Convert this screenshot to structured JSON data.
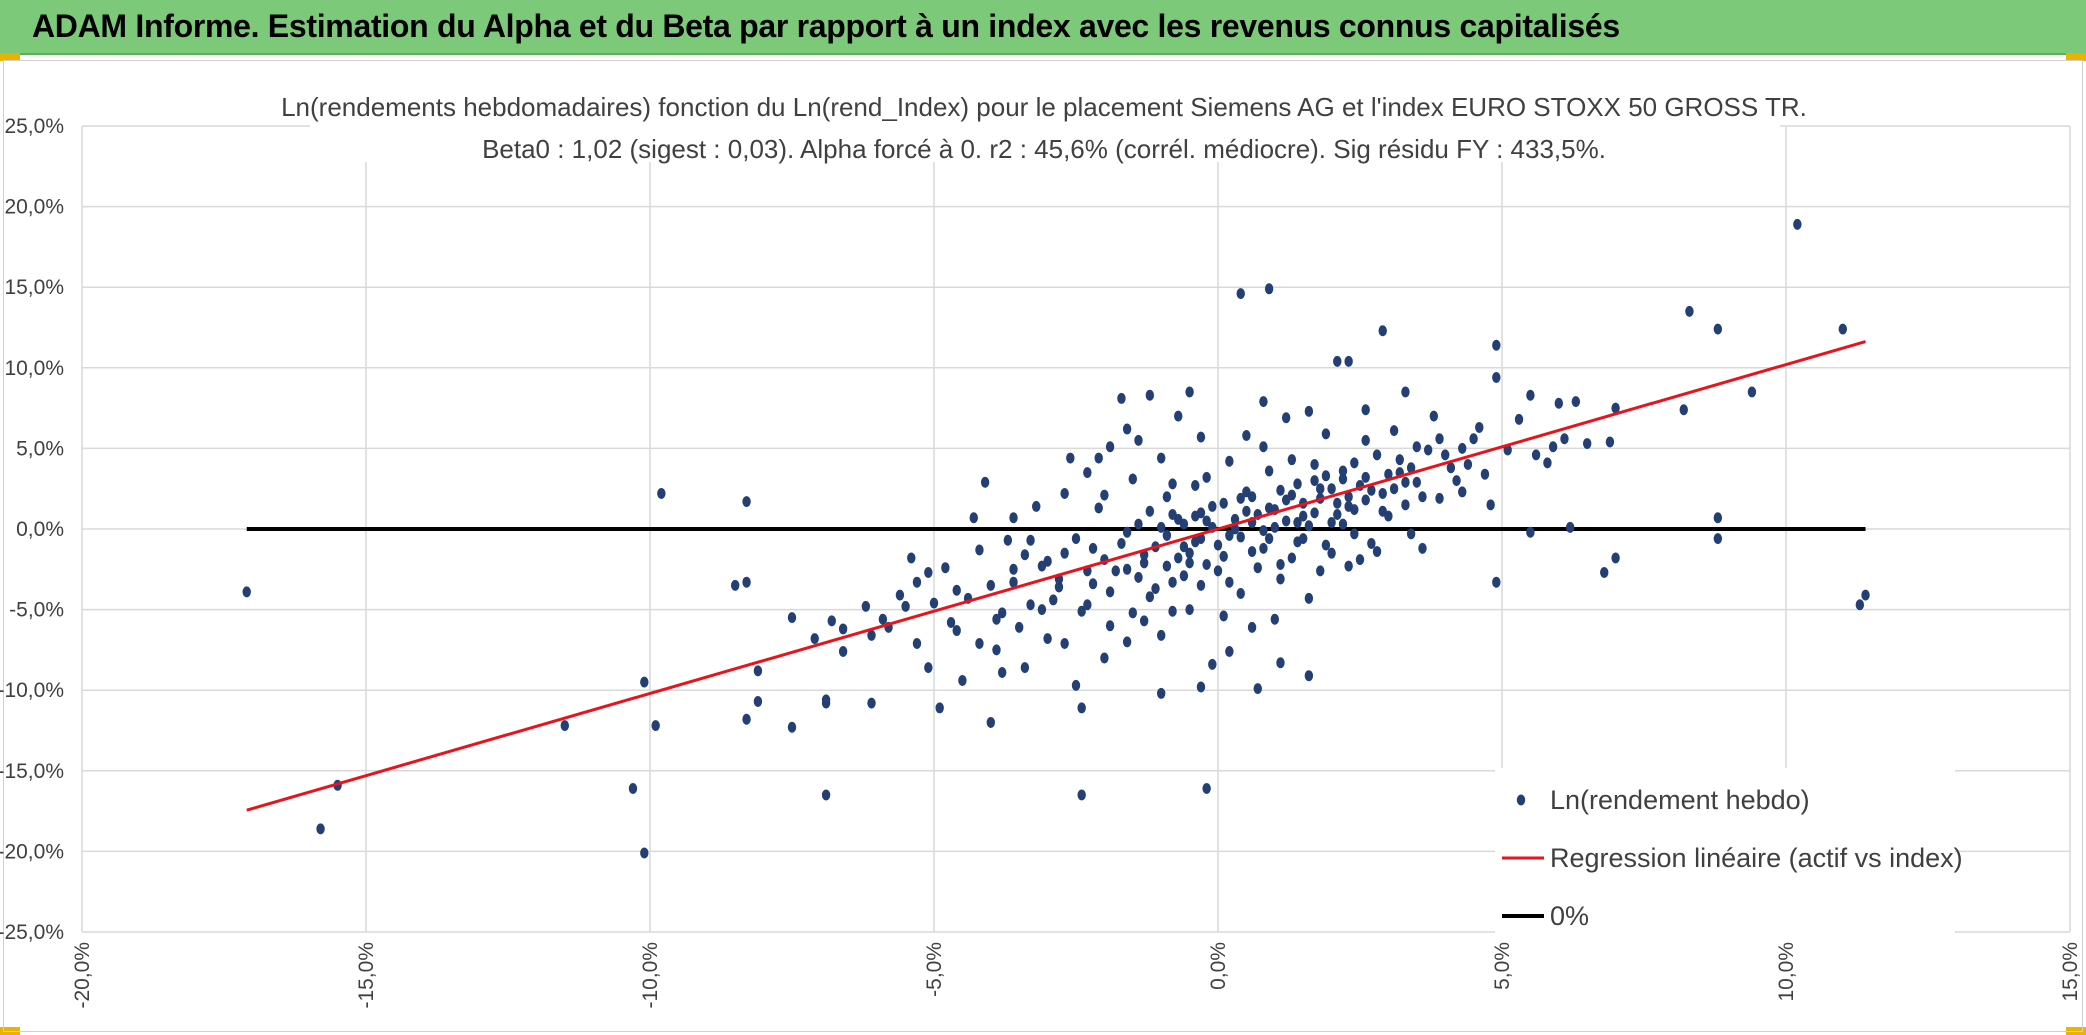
{
  "header": {
    "title": "ADAM Informe. Estimation du Alpha et du Beta par rapport à un index avec les revenus connus capitalisés",
    "background": "#7dc97a"
  },
  "colors": {
    "points": "#243f73",
    "regression": "#e8141c",
    "zero_line": "#000000",
    "grid": "#d9d9d9",
    "text": "#404040"
  },
  "chart_data": {
    "type": "scatter",
    "title": "Ln(rendements hebdomadaires) fonction du Ln(rend_Index) pour le placement Siemens AG et l'index EURO STOXX 50 GROSS TR.",
    "subtitle": "Beta0 : 1,02 (sigest : 0,03). Alpha forcé à 0. r2 : 45,6% (corrél. médiocre). Sig résidu FY : 433,5%.",
    "xlabel": "",
    "ylabel": "",
    "xlim": [
      -20,
      15
    ],
    "ylim": [
      -25,
      25
    ],
    "x_ticks": [
      "-20,0%",
      "-15,0%",
      "-10,0%",
      "-5,0%",
      "0,0%",
      "5,0%",
      "10,0%",
      "15,0%"
    ],
    "y_ticks": [
      "25,0%",
      "20,0%",
      "15,0%",
      "10,0%",
      "5,0%",
      "0,0%",
      "-5,0%",
      "-10,0%",
      "-15,0%",
      "-20,0%",
      "-25,0%"
    ],
    "grid": true,
    "legend_position": "bottom-right",
    "legend": [
      "Ln(rendement hebdo)",
      "Regression linéaire (actif vs index)",
      "0%"
    ],
    "regression": {
      "name": "Regression linéaire (actif vs index)",
      "slope": 1.02,
      "intercept": 0,
      "x_range": [
        -17.1,
        11.4
      ]
    },
    "zero_line": {
      "name": "0%",
      "y": 0,
      "x_range": [
        -17.1,
        11.4
      ]
    },
    "series": [
      {
        "name": "Ln(rendement hebdo)",
        "points": [
          [
            -17.1,
            -3.9
          ],
          [
            -15.8,
            -18.6
          ],
          [
            -15.5,
            -15.9
          ],
          [
            -11.5,
            -12.2
          ],
          [
            -10.3,
            -16.1
          ],
          [
            -10.1,
            -20.1
          ],
          [
            -10.1,
            -9.5
          ],
          [
            -9.9,
            -12.2
          ],
          [
            -9.8,
            2.2
          ],
          [
            -8.5,
            -3.5
          ],
          [
            -8.3,
            -3.3
          ],
          [
            -8.3,
            1.7
          ],
          [
            -8.3,
            -11.8
          ],
          [
            -8.1,
            -10.7
          ],
          [
            -8.1,
            -8.8
          ],
          [
            -7.5,
            -12.3
          ],
          [
            -7.5,
            -5.5
          ],
          [
            -7.1,
            -6.8
          ],
          [
            -6.9,
            -10.6
          ],
          [
            -6.9,
            -16.5
          ],
          [
            -6.9,
            -10.8
          ],
          [
            -6.8,
            -5.7
          ],
          [
            -6.6,
            -6.2
          ],
          [
            -6.6,
            -7.6
          ],
          [
            -6.1,
            -10.8
          ],
          [
            -6.1,
            -6.6
          ],
          [
            -5.9,
            -5.6
          ],
          [
            -5.8,
            -6.1
          ],
          [
            -5.5,
            -4.8
          ],
          [
            -5.4,
            -1.8
          ],
          [
            -5.3,
            -7.1
          ],
          [
            -5.1,
            -2.7
          ],
          [
            -5.1,
            -8.6
          ],
          [
            -5.0,
            -4.6
          ],
          [
            -4.9,
            -11.1
          ],
          [
            -4.7,
            -5.8
          ],
          [
            -4.6,
            -3.8
          ],
          [
            -4.5,
            -9.4
          ],
          [
            -4.3,
            0.7
          ],
          [
            -4.2,
            -7.1
          ],
          [
            -4.1,
            2.9
          ],
          [
            -4.0,
            -12.0
          ],
          [
            -4.0,
            -3.5
          ],
          [
            -3.9,
            -7.5
          ],
          [
            -3.8,
            -8.9
          ],
          [
            -3.8,
            -5.2
          ],
          [
            -3.6,
            0.7
          ],
          [
            -3.6,
            -3.3
          ],
          [
            -3.5,
            -6.1
          ],
          [
            -3.4,
            -8.6
          ],
          [
            -3.3,
            -4.7
          ],
          [
            -3.3,
            -0.7
          ],
          [
            -3.1,
            -2.3
          ],
          [
            -3.0,
            -2.0
          ],
          [
            -2.9,
            -4.4
          ],
          [
            -2.8,
            -3.1
          ],
          [
            -2.7,
            -1.5
          ],
          [
            -2.6,
            4.4
          ],
          [
            -2.5,
            -9.7
          ],
          [
            -2.4,
            -5.1
          ],
          [
            -2.3,
            -2.6
          ],
          [
            -2.2,
            -3.4
          ],
          [
            -2.1,
            1.3
          ],
          [
            -2.0,
            -8.0
          ],
          [
            -2.0,
            -1.9
          ],
          [
            -1.9,
            -6.0
          ],
          [
            -1.8,
            -2.6
          ],
          [
            -1.7,
            -0.9
          ],
          [
            -1.6,
            -7.0
          ],
          [
            -1.5,
            -5.2
          ],
          [
            -1.4,
            0.3
          ],
          [
            -1.3,
            -2.1
          ],
          [
            -1.2,
            1.1
          ],
          [
            -1.1,
            -1.1
          ],
          [
            -1.0,
            -6.6
          ],
          [
            -0.9,
            -0.4
          ],
          [
            -0.8,
            -3.3
          ],
          [
            -0.8,
            2.8
          ],
          [
            -0.7,
            0.6
          ],
          [
            -0.6,
            -1.1
          ],
          [
            -0.5,
            -5.0
          ],
          [
            -0.5,
            -1.5
          ],
          [
            -0.4,
            0.8
          ],
          [
            -0.3,
            -0.6
          ],
          [
            -0.2,
            3.2
          ],
          [
            -0.2,
            -2.2
          ],
          [
            -0.1,
            0.1
          ],
          [
            0.0,
            -1.0
          ],
          [
            0.1,
            1.6
          ],
          [
            0.2,
            -3.3
          ],
          [
            0.3,
            0.6
          ],
          [
            0.4,
            -0.5
          ],
          [
            0.5,
            2.3
          ],
          [
            0.6,
            -1.4
          ],
          [
            0.7,
            0.9
          ],
          [
            0.8,
            -0.1
          ],
          [
            0.9,
            3.6
          ],
          [
            1.0,
            1.2
          ],
          [
            1.1,
            -2.2
          ],
          [
            1.2,
            0.5
          ],
          [
            1.3,
            2.1
          ],
          [
            1.4,
            -0.8
          ],
          [
            1.5,
            1.6
          ],
          [
            1.6,
            0.2
          ],
          [
            1.7,
            4.0
          ],
          [
            1.8,
            1.9
          ],
          [
            1.9,
            -1.0
          ],
          [
            2.0,
            2.5
          ],
          [
            2.1,
            0.9
          ],
          [
            2.2,
            3.1
          ],
          [
            2.3,
            1.4
          ],
          [
            2.4,
            -0.3
          ],
          [
            2.5,
            2.7
          ],
          [
            2.6,
            1.8
          ],
          [
            2.8,
            4.6
          ],
          [
            2.9,
            2.2
          ],
          [
            3.0,
            0.8
          ],
          [
            3.2,
            3.5
          ],
          [
            3.3,
            1.5
          ],
          [
            3.5,
            2.9
          ],
          [
            3.7,
            4.9
          ],
          [
            3.9,
            1.9
          ],
          [
            4.1,
            3.8
          ],
          [
            4.3,
            2.3
          ],
          [
            4.5,
            5.6
          ],
          [
            4.7,
            3.4
          ],
          [
            -1.7,
            8.1
          ],
          [
            -1.2,
            8.3
          ],
          [
            -0.5,
            8.5
          ],
          [
            0.4,
            14.6
          ],
          [
            0.9,
            14.9
          ],
          [
            2.1,
            10.4
          ],
          [
            2.3,
            10.4
          ],
          [
            2.9,
            12.3
          ],
          [
            4.9,
            11.4
          ],
          [
            4.9,
            9.4
          ],
          [
            5.5,
            8.3
          ],
          [
            6.0,
            7.8
          ],
          [
            6.3,
            7.9
          ],
          [
            7.0,
            7.5
          ],
          [
            8.3,
            13.5
          ],
          [
            8.8,
            12.4
          ],
          [
            8.2,
            7.4
          ],
          [
            9.4,
            8.5
          ],
          [
            10.2,
            18.9
          ],
          [
            11.0,
            12.4
          ],
          [
            8.8,
            0.7
          ],
          [
            8.8,
            -0.6
          ],
          [
            6.8,
            -2.7
          ],
          [
            7.0,
            -1.8
          ],
          [
            11.4,
            -4.1
          ],
          [
            11.3,
            -4.7
          ],
          [
            4.9,
            -3.3
          ],
          [
            5.5,
            -0.2
          ],
          [
            6.2,
            0.1
          ],
          [
            4.8,
            1.5
          ],
          [
            -0.2,
            -16.1
          ],
          [
            -2.4,
            -16.5
          ],
          [
            -2.4,
            -11.1
          ],
          [
            -1.0,
            -10.2
          ],
          [
            -0.3,
            -9.8
          ],
          [
            0.7,
            -9.9
          ],
          [
            1.6,
            -9.1
          ],
          [
            1.1,
            -8.3
          ],
          [
            -0.1,
            -8.4
          ],
          [
            0.2,
            -7.6
          ],
          [
            -1.3,
            -5.7
          ],
          [
            -2.7,
            -7.1
          ],
          [
            -3.0,
            -6.8
          ],
          [
            -0.8,
            -5.1
          ],
          [
            0.1,
            -5.4
          ],
          [
            0.6,
            -6.1
          ],
          [
            1.0,
            -5.6
          ],
          [
            1.6,
            -4.3
          ],
          [
            2.3,
            -2.3
          ],
          [
            2.8,
            -1.4
          ],
          [
            3.4,
            -0.3
          ],
          [
            3.6,
            -1.2
          ],
          [
            3.1,
            6.1
          ],
          [
            2.6,
            5.5
          ],
          [
            1.9,
            5.9
          ],
          [
            1.2,
            6.9
          ],
          [
            0.5,
            5.8
          ],
          [
            -0.3,
            5.7
          ],
          [
            -1.0,
            4.4
          ],
          [
            -1.4,
            5.5
          ],
          [
            -1.9,
            5.1
          ],
          [
            -2.3,
            3.5
          ],
          [
            -2.0,
            2.1
          ],
          [
            -1.5,
            3.1
          ],
          [
            -0.9,
            2.0
          ],
          [
            -0.4,
            2.7
          ],
          [
            0.2,
            4.2
          ],
          [
            0.8,
            5.1
          ],
          [
            1.3,
            4.3
          ],
          [
            1.9,
            3.3
          ],
          [
            2.4,
            4.1
          ],
          [
            3.0,
            3.4
          ],
          [
            3.5,
            5.1
          ],
          [
            4.0,
            4.6
          ],
          [
            4.4,
            4.0
          ],
          [
            5.1,
            4.9
          ],
          [
            5.8,
            4.1
          ],
          [
            6.1,
            5.6
          ],
          [
            5.3,
            6.8
          ],
          [
            4.6,
            6.3
          ],
          [
            3.8,
            7.0
          ],
          [
            3.3,
            8.5
          ],
          [
            2.6,
            7.4
          ],
          [
            1.6,
            7.3
          ],
          [
            0.8,
            7.9
          ],
          [
            -0.7,
            7.0
          ],
          [
            -1.6,
            6.2
          ],
          [
            -2.1,
            4.4
          ],
          [
            -2.7,
            2.2
          ],
          [
            -3.2,
            1.4
          ],
          [
            -3.7,
            -0.7
          ],
          [
            -4.2,
            -1.3
          ],
          [
            -4.8,
            -2.4
          ],
          [
            -5.3,
            -3.3
          ],
          [
            -5.6,
            -4.1
          ],
          [
            -6.2,
            -4.8
          ],
          [
            -3.4,
            -1.6
          ],
          [
            -2.5,
            -0.6
          ],
          [
            -1.6,
            -0.2
          ],
          [
            -0.8,
            0.9
          ],
          [
            -0.1,
            1.4
          ],
          [
            0.6,
            2.0
          ],
          [
            1.4,
            2.8
          ],
          [
            2.2,
            3.6
          ],
          [
            3.2,
            4.3
          ],
          [
            -1.9,
            -3.9
          ],
          [
            -1.2,
            -4.2
          ],
          [
            -0.6,
            -2.9
          ],
          [
            0.0,
            -2.6
          ],
          [
            0.7,
            -2.4
          ],
          [
            1.3,
            -1.8
          ],
          [
            2.0,
            -1.5
          ],
          [
            2.7,
            -0.9
          ],
          [
            -2.8,
            -3.6
          ],
          [
            -3.6,
            -2.5
          ],
          [
            -4.4,
            -4.3
          ],
          [
            -1.1,
            -3.7
          ],
          [
            -0.3,
            -3.5
          ],
          [
            0.4,
            -4.0
          ],
          [
            1.1,
            -3.1
          ],
          [
            1.8,
            -2.6
          ],
          [
            2.5,
            -1.9
          ],
          [
            -0.6,
            0.3
          ],
          [
            0.3,
            0.0
          ],
          [
            0.9,
            1.3
          ],
          [
            1.5,
            0.8
          ],
          [
            2.1,
            1.6
          ],
          [
            2.7,
            2.4
          ],
          [
            3.3,
            2.9
          ],
          [
            -1.3,
            -1.6
          ],
          [
            -0.7,
            -1.8
          ],
          [
            0.1,
            -1.7
          ],
          [
            0.8,
            -1.2
          ],
          [
            1.5,
            -0.6
          ],
          [
            2.2,
            0.3
          ],
          [
            2.9,
            1.1
          ],
          [
            3.6,
            2.0
          ],
          [
            4.2,
            3.0
          ],
          [
            -2.2,
            -1.2
          ],
          [
            -1.6,
            -2.5
          ],
          [
            -0.9,
            -2.3
          ],
          [
            -0.2,
            0.5
          ],
          [
            0.5,
            1.1
          ],
          [
            1.2,
            1.8
          ],
          [
            1.8,
            2.5
          ],
          [
            2.4,
            1.2
          ],
          [
            3.1,
            2.5
          ],
          [
            -0.4,
            -0.8
          ],
          [
            0.6,
            0.4
          ],
          [
            1.0,
            0.1
          ],
          [
            1.7,
            1.0
          ],
          [
            2.3,
            2.0
          ],
          [
            -1.0,
            0.1
          ],
          [
            -0.3,
            1.0
          ],
          [
            0.4,
            1.9
          ],
          [
            1.1,
            2.4
          ],
          [
            1.7,
            3.0
          ],
          [
            2.0,
            0.4
          ],
          [
            0.2,
            -0.4
          ],
          [
            -0.5,
            -2.1
          ],
          [
            -1.4,
            -3.0
          ],
          [
            -2.3,
            -4.7
          ],
          [
            -3.1,
            -5.0
          ],
          [
            -3.9,
            -5.6
          ],
          [
            -4.6,
            -6.3
          ],
          [
            0.9,
            -0.6
          ],
          [
            1.4,
            0.4
          ],
          [
            2.6,
            3.2
          ],
          [
            3.4,
            3.8
          ],
          [
            3.9,
            5.6
          ],
          [
            4.3,
            5.0
          ],
          [
            5.6,
            4.6
          ],
          [
            6.5,
            5.3
          ],
          [
            5.9,
            5.1
          ],
          [
            6.9,
            5.4
          ]
        ]
      }
    ]
  }
}
